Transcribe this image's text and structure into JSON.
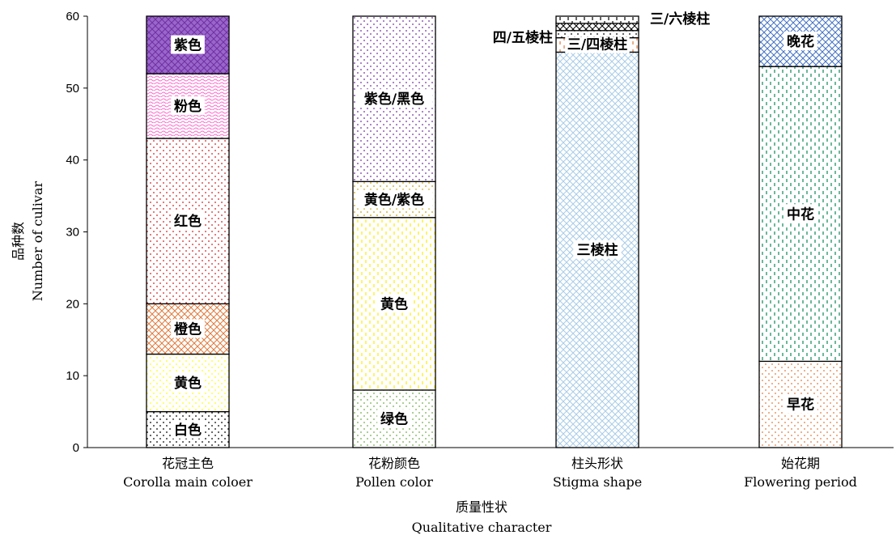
{
  "chart_data": {
    "type": "bar",
    "stacked": true,
    "ylabel": "品种数",
    "ylabel_en": "Number of culivar",
    "xlabel": "质量性状",
    "xlabel_en": "Qualitative character",
    "ylim": [
      0,
      60
    ],
    "yticks": [
      0,
      10,
      20,
      30,
      40,
      50,
      60
    ],
    "grid": false,
    "categories": [
      {
        "zh": "花冠主色",
        "en": "Corolla main coloer"
      },
      {
        "zh": "花粉颜色",
        "en": "Pollen color"
      },
      {
        "zh": "柱头形状",
        "en": "Stigma shape"
      },
      {
        "zh": "始花期",
        "en": "Flowering period"
      }
    ],
    "stacks": [
      [
        {
          "label": "白色",
          "value": 5,
          "color": "#000000",
          "pattern": "dots",
          "fill": "#ffffff"
        },
        {
          "label": "黄色",
          "value": 8,
          "color": "#ffff00",
          "pattern": "dots",
          "fill": "#ffffff"
        },
        {
          "label": "橙色",
          "value": 7,
          "color": "#e07a3c",
          "pattern": "cross",
          "fill": "#ffffff"
        },
        {
          "label": "红色",
          "value": 23,
          "color": "#d02020",
          "pattern": "dots",
          "fill": "#ffffff"
        },
        {
          "label": "粉色",
          "value": 9,
          "color": "#ff66cc",
          "pattern": "wave",
          "fill": "#ffffff"
        },
        {
          "label": "紫色",
          "value": 8,
          "color": "#7030a0",
          "pattern": "cross",
          "fill": "#9966cc"
        }
      ],
      [
        {
          "label": "绿色",
          "value": 8,
          "color": "#70ad47",
          "pattern": "dots",
          "fill": "#ffffff"
        },
        {
          "label": "黄色",
          "value": 24,
          "color": "#ffee00",
          "pattern": "dash",
          "fill": "#ffffff"
        },
        {
          "label": "黄色/紫色",
          "value": 5,
          "color": "#c9a000",
          "pattern": "dots",
          "fill": "#ffffff"
        },
        {
          "label": "紫色/黑色",
          "value": 23,
          "color": "#7030a0",
          "pattern": "dots",
          "fill": "#ffffff"
        }
      ],
      [
        {
          "label": "三棱柱",
          "value": 55,
          "color": "#a9cce8",
          "pattern": "cross",
          "fill": "#ffffff"
        },
        {
          "label": "三/四棱柱",
          "value": 2,
          "color": "#e07a3c",
          "pattern": "dash",
          "fill": "#ffffff"
        },
        {
          "label": "四/五棱柱",
          "value": 1,
          "color": "#000000",
          "pattern": "dots",
          "fill": "#ffffff"
        },
        {
          "label": "",
          "value": 1,
          "color": "#000000",
          "pattern": "cross",
          "fill": "#ffffff"
        },
        {
          "label": "三/六棱柱",
          "value": 1,
          "color": "#000000",
          "pattern": "dash",
          "fill": "#ffffff"
        }
      ],
      [
        {
          "label": "早花",
          "value": 12,
          "color": "#e07a3c",
          "pattern": "dots",
          "fill": "#ffffff"
        },
        {
          "label": "中花",
          "value": 41,
          "color": "#0a8a5a",
          "pattern": "dash",
          "fill": "#ffffff"
        },
        {
          "label": "晚花",
          "value": 7,
          "color": "#4472c4",
          "pattern": "cross",
          "fill": "#ffffff"
        }
      ]
    ]
  }
}
